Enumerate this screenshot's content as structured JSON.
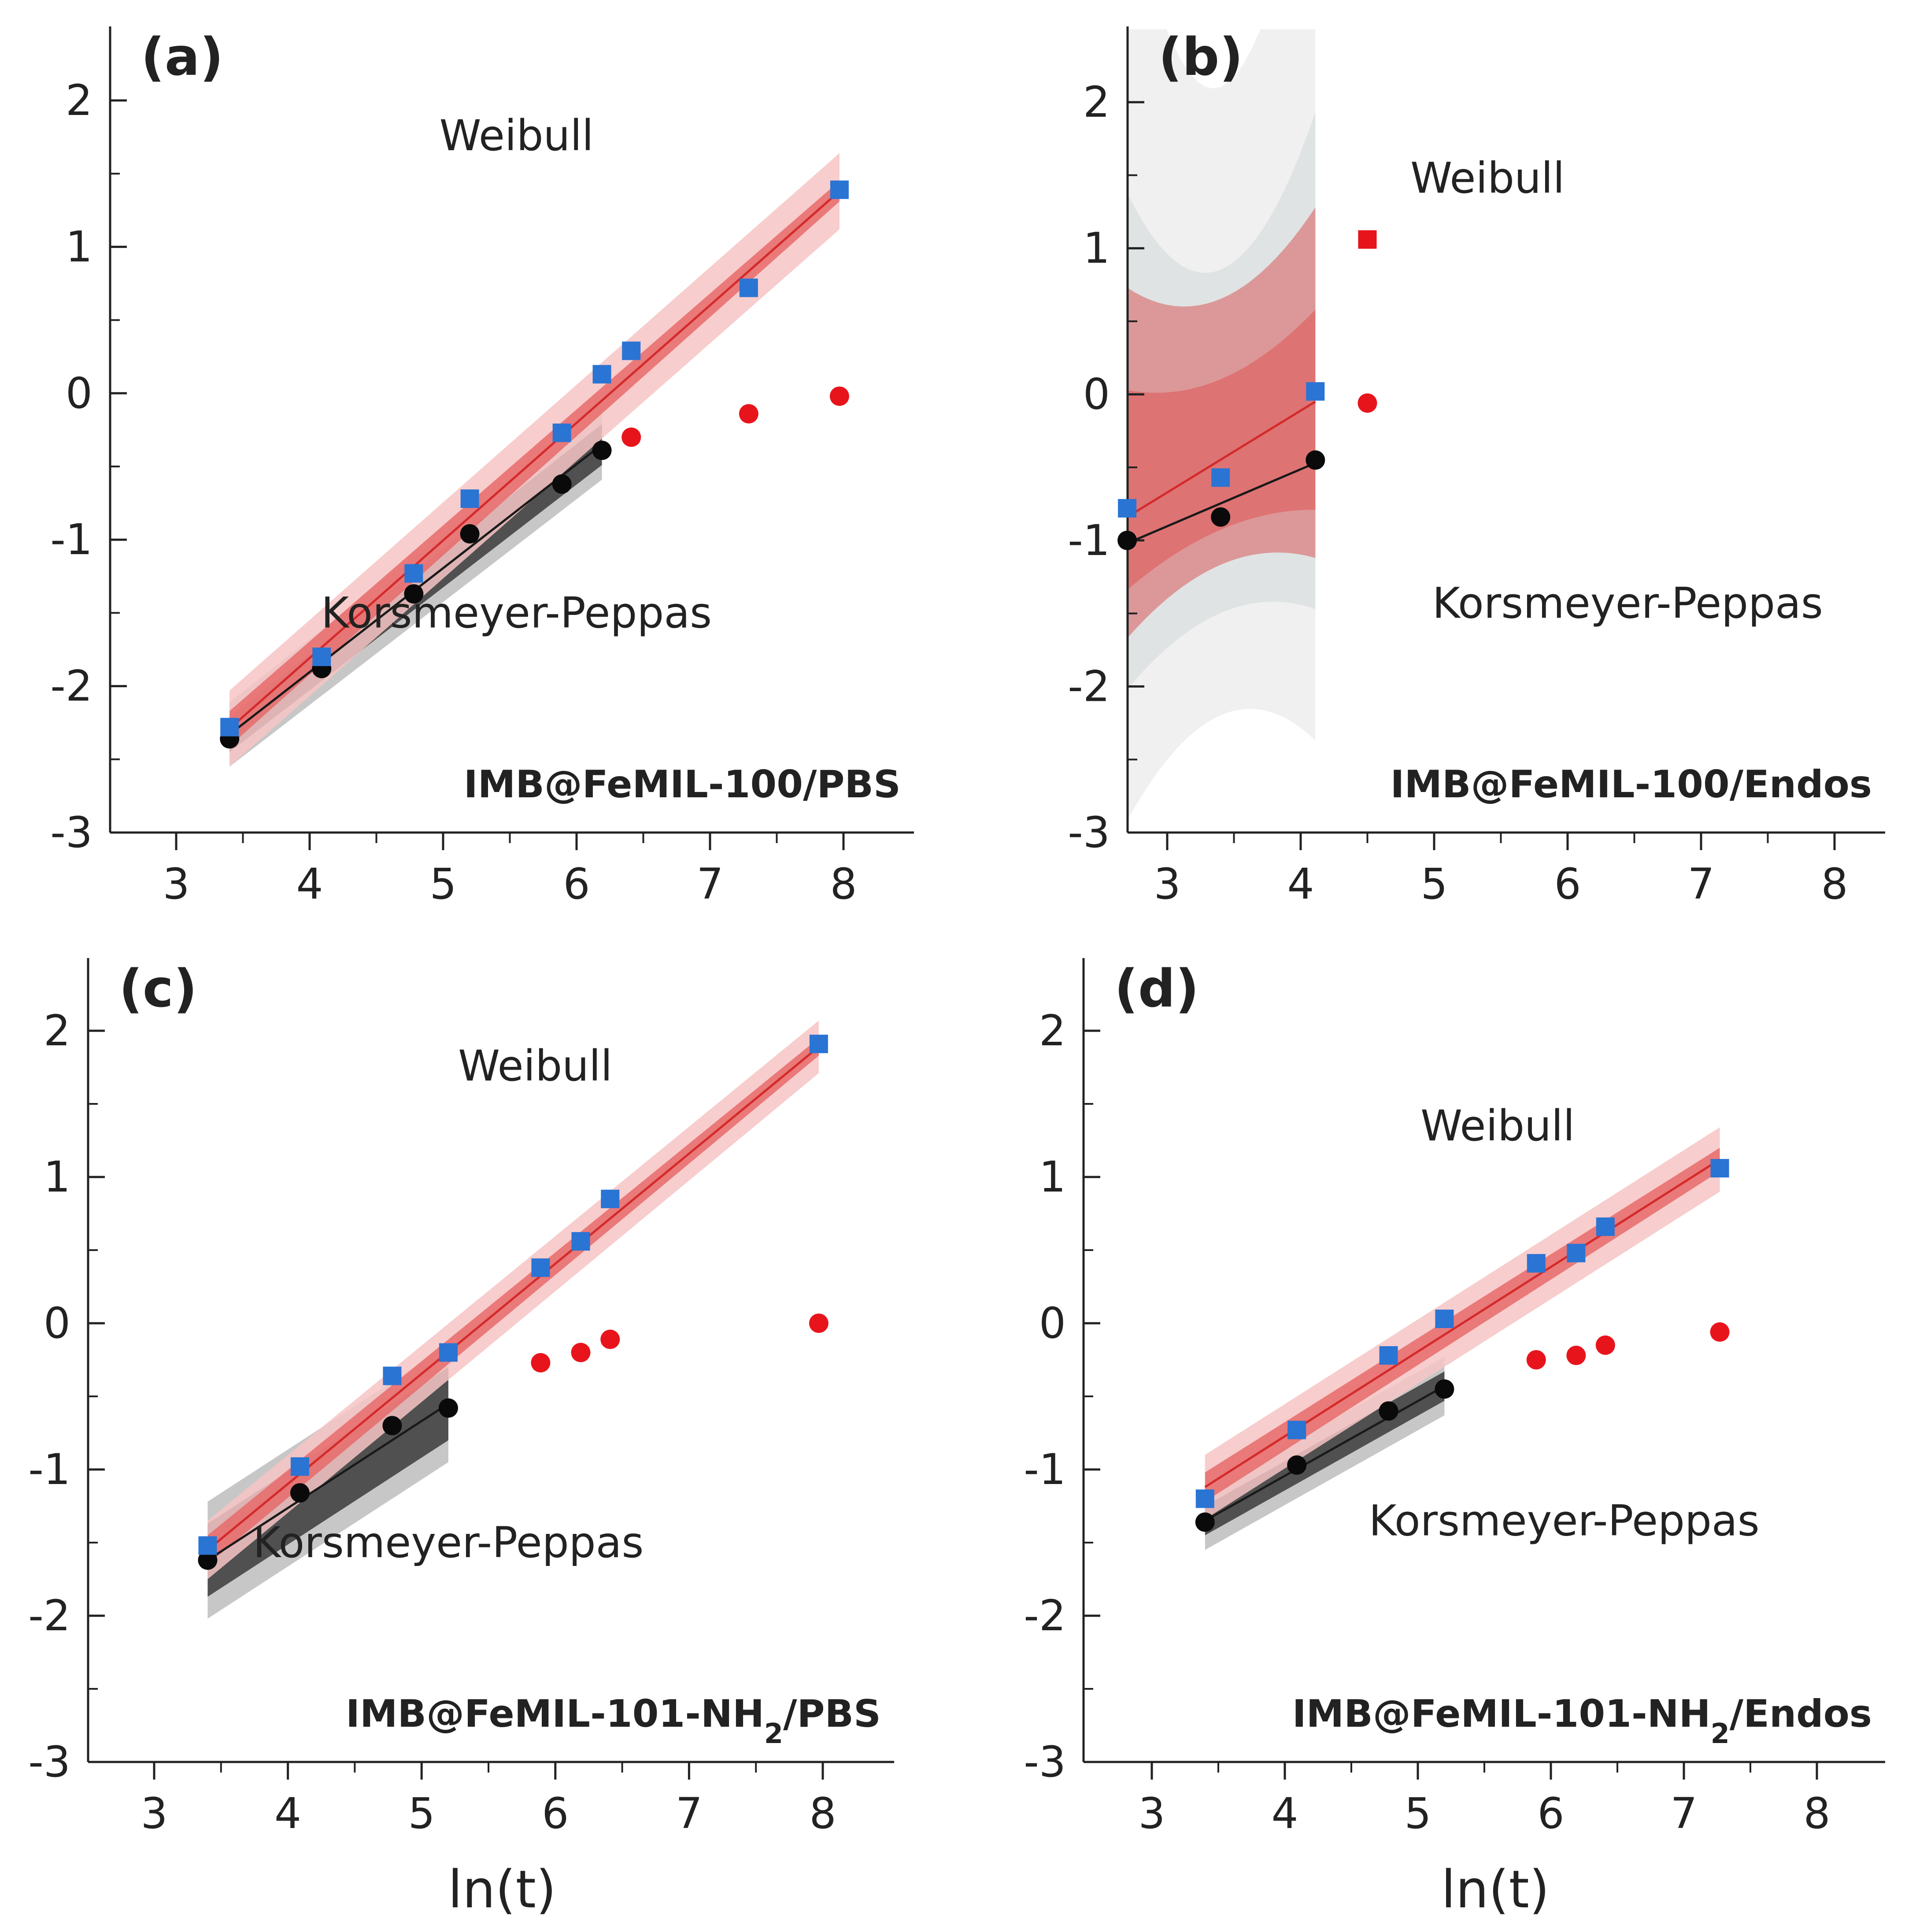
{
  "chart_data": [
    {
      "panel": "(a)",
      "type": "scatter",
      "sample_label": "IMB@FeMIL-100/PBS",
      "sub": null,
      "xlabel": "",
      "xlim": [
        2.5,
        8.5
      ],
      "ylim": [
        -3,
        2.5
      ],
      "xticks": [
        3,
        4,
        5,
        6,
        7,
        8
      ],
      "yticks": [
        -3,
        -2,
        -1,
        0,
        1,
        2
      ],
      "annotations": {
        "weibull": {
          "text": "Weibull",
          "x": 5.55,
          "y": 1.66
        },
        "kp": {
          "text": "Korsmeyer-Peppas",
          "x": 5.55,
          "y": -1.6
        }
      },
      "weibull_points": [
        [
          3.4,
          -2.28
        ],
        [
          4.09,
          -1.8
        ],
        [
          4.78,
          -1.23
        ],
        [
          5.2,
          -0.72
        ],
        [
          5.89,
          -0.27
        ],
        [
          6.19,
          0.13
        ],
        [
          6.41,
          0.29
        ],
        [
          7.29,
          0.72
        ],
        [
          7.97,
          1.39
        ]
      ],
      "kp_points": [
        [
          3.4,
          -2.36
        ],
        [
          4.09,
          -1.88
        ],
        [
          4.78,
          -1.37
        ],
        [
          5.2,
          -0.96
        ],
        [
          5.89,
          -0.62
        ],
        [
          6.19,
          -0.39
        ],
        [
          6.41,
          -0.3
        ],
        [
          7.29,
          -0.14
        ],
        [
          7.97,
          -0.02
        ]
      ],
      "kp_fit_count": 6,
      "weibull_fit": {
        "x": [
          3.4,
          7.97
        ],
        "y": [
          -2.29,
          1.38
        ]
      },
      "weibull_band": {
        "confidence": [
          0.12,
          0.07
        ],
        "prediction": [
          0.26,
          0.26
        ]
      },
      "kp_fit": {
        "x": [
          3.4,
          6.19
        ],
        "y": [
          -2.33,
          -0.35
        ]
      },
      "kp_band": {
        "confidence": [
          0.12,
          0.14
        ],
        "prediction": [
          0.22,
          0.24
        ]
      },
      "wide_bands": null
    },
    {
      "panel": "(b)",
      "type": "scatter",
      "sample_label": "IMB@FeMIL-100/Endos",
      "sub": null,
      "xlabel": "",
      "xlim": [
        2.5,
        8.5
      ],
      "ylim": [
        -3,
        2.5
      ],
      "xticks": [
        3,
        4,
        5,
        6,
        7,
        8
      ],
      "yticks": [
        -3,
        -2,
        -1,
        0,
        1,
        2
      ],
      "annotations": {
        "weibull": {
          "text": "Weibull",
          "x": 5.4,
          "y": 1.38
        },
        "kp": {
          "text": "Korsmeyer-Peppas",
          "x": 6.45,
          "y": -1.53
        }
      },
      "weibull_points": [
        [
          2.7,
          -0.78
        ],
        [
          3.4,
          -0.57
        ],
        [
          4.11,
          0.02
        ],
        [
          4.5,
          1.06
        ]
      ],
      "kp_points": [
        [
          2.7,
          -1.0
        ],
        [
          3.4,
          -0.84
        ],
        [
          4.11,
          -0.45
        ],
        [
          4.5,
          -0.06
        ]
      ],
      "kp_fit_count": 3,
      "weibull_fit": {
        "x": [
          2.7,
          4.11
        ],
        "y": [
          -0.84,
          -0.05
        ]
      },
      "weibull_band": null,
      "kp_fit": {
        "x": [
          2.7,
          4.11
        ],
        "y": [
          -1.02,
          -0.47
        ]
      },
      "kp_band": null,
      "wide_bands": {
        "x": [
          2.7,
          4.11
        ],
        "gray_outer": [
          2.55,
          4.2
        ],
        "gray_inner": [
          1.3,
          2.1
        ],
        "red_pred": [
          1.1,
          1.45
        ],
        "red_conf": [
          0.55,
          0.75
        ],
        "gray_outer_lo": [
          1.75,
          2.2
        ],
        "gray_inner_lo": [
          1.05,
          1.3
        ],
        "red_pred_lo": [
          0.72,
          0.95
        ],
        "red_conf_lo": [
          0.48,
          0.62
        ]
      }
    },
    {
      "panel": "(c)",
      "type": "scatter",
      "sample_label": "IMB@FeMIL-101-NH",
      "sub": "2",
      "sample_label_suffix": "/PBS",
      "xlabel": "ln(t)",
      "xlim": [
        2.5,
        8.5
      ],
      "ylim": [
        -3,
        2.5
      ],
      "xticks": [
        3,
        4,
        5,
        6,
        7,
        8
      ],
      "yticks": [
        -3,
        -2,
        -1,
        0,
        1,
        2
      ],
      "annotations": {
        "weibull": {
          "text": "Weibull",
          "x": 5.85,
          "y": 1.66
        },
        "kp": {
          "text": "Korsmeyer-Peppas",
          "x": 5.2,
          "y": -1.6
        }
      },
      "weibull_points": [
        [
          3.4,
          -1.52
        ],
        [
          4.09,
          -0.98
        ],
        [
          4.78,
          -0.36
        ],
        [
          5.2,
          -0.2
        ],
        [
          5.89,
          0.38
        ],
        [
          6.19,
          0.56
        ],
        [
          6.41,
          0.85
        ],
        [
          7.97,
          1.91
        ]
      ],
      "kp_points": [
        [
          3.4,
          -1.62
        ],
        [
          4.09,
          -1.16
        ],
        [
          4.78,
          -0.7
        ],
        [
          5.2,
          -0.58
        ],
        [
          5.89,
          -0.27
        ],
        [
          6.19,
          -0.2
        ],
        [
          6.41,
          -0.11
        ],
        [
          7.97,
          0.0
        ]
      ],
      "kp_fit_count": 4,
      "weibull_fit": {
        "x": [
          3.4,
          7.97
        ],
        "y": [
          -1.55,
          1.89
        ]
      },
      "weibull_band": {
        "confidence": [
          0.1,
          0.06
        ],
        "prediction": [
          0.2,
          0.18
        ]
      },
      "kp_fit": {
        "x": [
          3.4,
          5.2
        ],
        "y": [
          -1.62,
          -0.55
        ]
      },
      "kp_band": {
        "confidence": [
          0.25,
          0.25
        ],
        "prediction": [
          0.4,
          0.4
        ]
      },
      "wide_bands": null
    },
    {
      "panel": "(d)",
      "type": "scatter",
      "sample_label": "IMB@FeMIL-101-NH",
      "sub": "2",
      "sample_label_suffix": "/Endos",
      "xlabel": "ln(t)",
      "xlim": [
        2.5,
        8.5
      ],
      "ylim": [
        -3,
        2.5
      ],
      "xticks": [
        3,
        4,
        5,
        6,
        7,
        8
      ],
      "yticks": [
        -3,
        -2,
        -1,
        0,
        1,
        2
      ],
      "annotations": {
        "weibull": {
          "text": "Weibull",
          "x": 5.6,
          "y": 1.25
        },
        "kp": {
          "text": "Korsmeyer-Peppas",
          "x": 6.1,
          "y": -1.45
        }
      },
      "weibull_points": [
        [
          3.4,
          -1.2
        ],
        [
          4.09,
          -0.73
        ],
        [
          4.78,
          -0.22
        ],
        [
          5.2,
          0.03
        ],
        [
          5.89,
          0.41
        ],
        [
          6.19,
          0.48
        ],
        [
          6.41,
          0.66
        ],
        [
          7.27,
          1.06
        ]
      ],
      "kp_points": [
        [
          3.4,
          -1.36
        ],
        [
          4.09,
          -0.97
        ],
        [
          4.78,
          -0.6
        ],
        [
          5.2,
          -0.45
        ],
        [
          5.89,
          -0.25
        ],
        [
          6.19,
          -0.22
        ],
        [
          6.41,
          -0.15
        ],
        [
          7.27,
          -0.06
        ]
      ],
      "kp_fit_count": 4,
      "weibull_fit": {
        "x": [
          3.4,
          7.27
        ],
        "y": [
          -1.12,
          1.12
        ]
      },
      "weibull_band": {
        "confidence": [
          0.1,
          0.08
        ],
        "prediction": [
          0.22,
          0.22
        ]
      },
      "kp_fit": {
        "x": [
          3.4,
          5.2
        ],
        "y": [
          -1.35,
          -0.43
        ]
      },
      "kp_band": {
        "confidence": [
          0.1,
          0.1
        ],
        "prediction": [
          0.2,
          0.2
        ]
      },
      "wide_bands": null
    }
  ],
  "colors": {
    "weibull_marker": "#2a74d4",
    "kp_marker": "#0a0a0a",
    "nonfit_marker": "#e8141c",
    "weibull_line": "#d42a2a",
    "weibull_conf": "#e86a6a",
    "weibull_pred": "#f7c4c4",
    "kp_line": "#1a1a1a",
    "kp_conf": "#3b3b3b",
    "kp_pred": "#bdbdbd",
    "axis": "#222222",
    "gray_outer": "#f0f0f0",
    "gray_inner": "#dfe3e3",
    "red_pred": "#eab7b7",
    "red_mid": "#dc9898",
    "red_conf": "#de7373"
  }
}
